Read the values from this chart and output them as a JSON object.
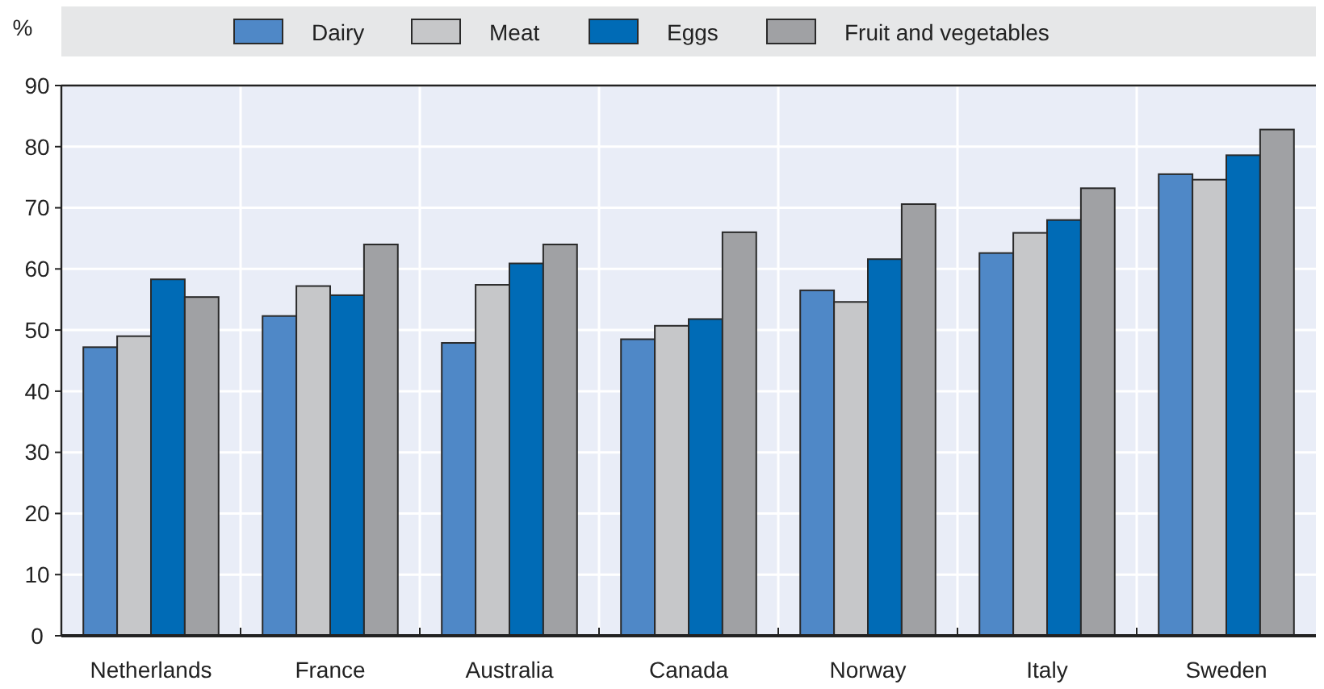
{
  "chart_data": {
    "type": "bar",
    "ylabel": "%",
    "categories": [
      "Netherlands",
      "France",
      "Australia",
      "Canada",
      "Norway",
      "Italy",
      "Sweden"
    ],
    "series": [
      {
        "name": "Dairy",
        "color": "#4f88c7",
        "values": [
          47.2,
          52.3,
          47.9,
          48.5,
          56.5,
          62.6,
          75.5
        ]
      },
      {
        "name": "Meat",
        "color": "#c6c7c9",
        "values": [
          49.0,
          57.2,
          57.4,
          50.7,
          54.6,
          65.9,
          74.6
        ]
      },
      {
        "name": "Eggs",
        "color": "#006bb6",
        "values": [
          58.3,
          55.7,
          60.9,
          51.8,
          61.6,
          68.0,
          78.6
        ]
      },
      {
        "name": "Fruit and vegetables",
        "color": "#a0a1a4",
        "values": [
          55.4,
          64.0,
          64.0,
          66.0,
          70.6,
          73.2,
          82.8
        ]
      }
    ],
    "ylim": [
      0,
      90
    ],
    "yticks": [
      0,
      10,
      20,
      30,
      40,
      50,
      60,
      70,
      80,
      90
    ],
    "grid": true,
    "legend": "top"
  }
}
